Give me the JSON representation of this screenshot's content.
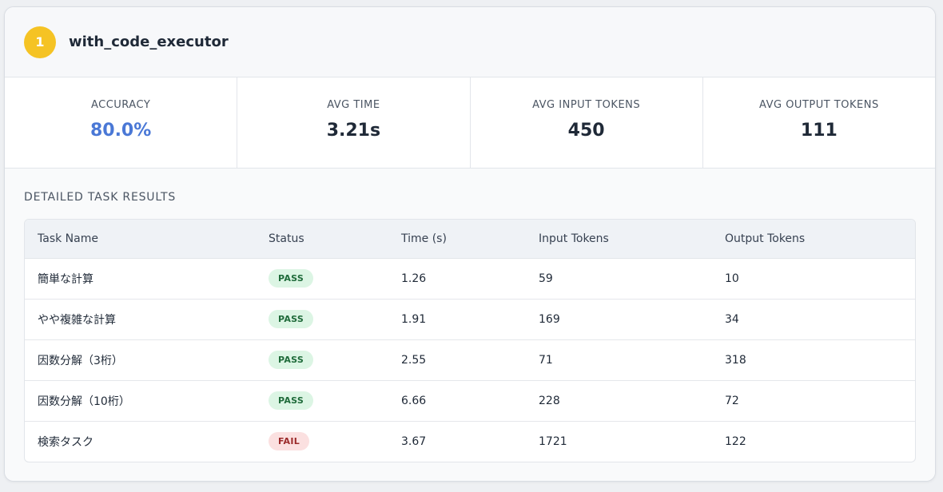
{
  "header": {
    "rank": "1",
    "config_name": "with_code_executor"
  },
  "metrics": [
    {
      "label": "ACCURACY",
      "value": "80.0%"
    },
    {
      "label": "AVG TIME",
      "value": "3.21s"
    },
    {
      "label": "AVG INPUT TOKENS",
      "value": "450"
    },
    {
      "label": "AVG OUTPUT TOKENS",
      "value": "111"
    }
  ],
  "details": {
    "title": "DETAILED TASK RESULTS",
    "columns": [
      "Task Name",
      "Status",
      "Time (s)",
      "Input Tokens",
      "Output Tokens"
    ],
    "rows": [
      {
        "name": "簡単な計算",
        "status": "PASS",
        "time": "1.26",
        "input": "59",
        "output": "10"
      },
      {
        "name": "やや複雑な計算",
        "status": "PASS",
        "time": "1.91",
        "input": "169",
        "output": "34"
      },
      {
        "name": "因数分解（3桁）",
        "status": "PASS",
        "time": "2.55",
        "input": "71",
        "output": "318"
      },
      {
        "name": "因数分解（10桁）",
        "status": "PASS",
        "time": "6.66",
        "input": "228",
        "output": "72"
      },
      {
        "name": "検索タスク",
        "status": "FAIL",
        "time": "3.67",
        "input": "1721",
        "output": "122"
      }
    ]
  },
  "colors": {
    "rank_badge": "#f5c324",
    "accuracy": "#4a78d6",
    "pass_bg": "#dcf5e4",
    "pass_text": "#1f6b3a",
    "fail_bg": "#fbe0e0",
    "fail_text": "#9b2a2a"
  }
}
